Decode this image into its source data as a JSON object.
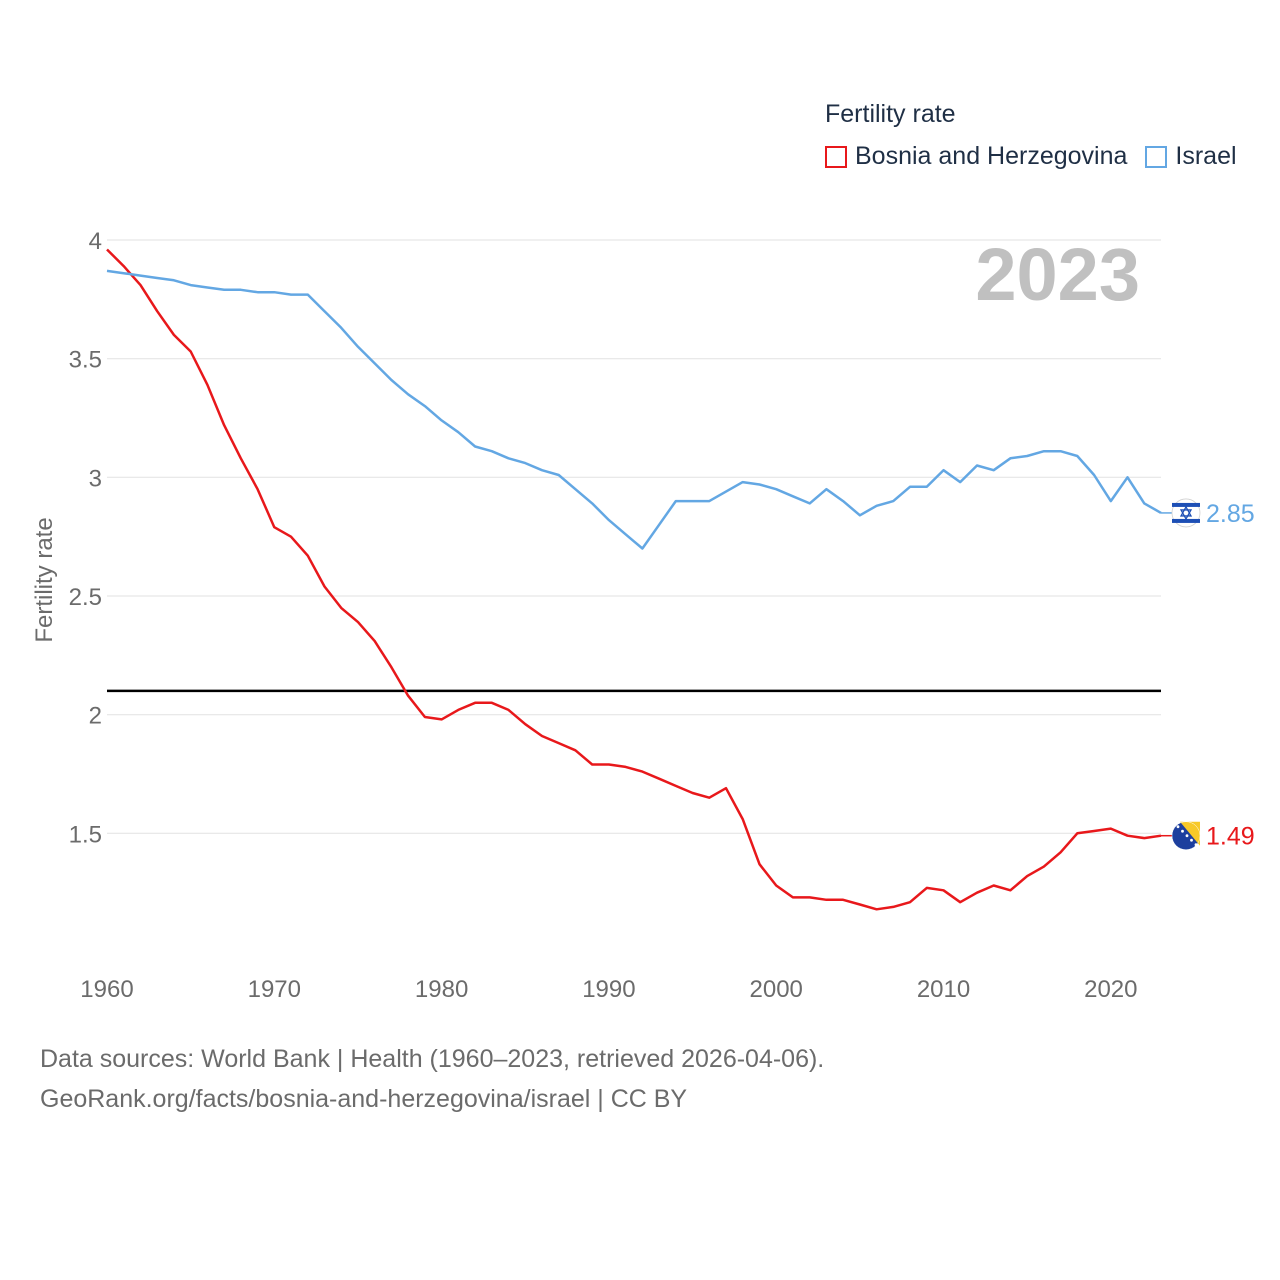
{
  "chart_data": {
    "type": "line",
    "legend_title": "Fertility rate",
    "ylabel": "Fertility rate",
    "xlabel": "",
    "year_label": "2023",
    "xlim": [
      1960,
      2023
    ],
    "ylim": [
      1.0,
      4.0
    ],
    "y_ticks": [
      1.5,
      2,
      2.5,
      3,
      3.5,
      4
    ],
    "x_ticks": [
      1960,
      1970,
      1980,
      1990,
      2000,
      2010,
      2020
    ],
    "grid": true,
    "legend_position": "top-right",
    "reference_line": 2.1,
    "x": [
      1960,
      1961,
      1962,
      1963,
      1964,
      1965,
      1966,
      1967,
      1968,
      1969,
      1970,
      1971,
      1972,
      1973,
      1974,
      1975,
      1976,
      1977,
      1978,
      1979,
      1980,
      1981,
      1982,
      1983,
      1984,
      1985,
      1986,
      1987,
      1988,
      1989,
      1990,
      1991,
      1992,
      1993,
      1994,
      1995,
      1996,
      1997,
      1998,
      1999,
      2000,
      2001,
      2002,
      2003,
      2004,
      2005,
      2006,
      2007,
      2008,
      2009,
      2010,
      2011,
      2012,
      2013,
      2014,
      2015,
      2016,
      2017,
      2018,
      2019,
      2020,
      2021,
      2022,
      2023
    ],
    "series": [
      {
        "name": "Bosnia and Herzegovina",
        "color": "#e8181b",
        "end_label": "1.49",
        "flag": "bosnia-flag",
        "values": [
          3.96,
          3.89,
          3.81,
          3.7,
          3.6,
          3.53,
          3.39,
          3.22,
          3.08,
          2.95,
          2.79,
          2.75,
          2.67,
          2.54,
          2.45,
          2.39,
          2.31,
          2.2,
          2.08,
          1.99,
          1.98,
          2.02,
          2.05,
          2.05,
          2.02,
          1.96,
          1.91,
          1.88,
          1.85,
          1.79,
          1.79,
          1.78,
          1.76,
          1.73,
          1.7,
          1.67,
          1.65,
          1.69,
          1.56,
          1.37,
          1.28,
          1.23,
          1.23,
          1.22,
          1.22,
          1.2,
          1.18,
          1.19,
          1.21,
          1.27,
          1.26,
          1.21,
          1.25,
          1.28,
          1.26,
          1.32,
          1.36,
          1.42,
          1.5,
          1.51,
          1.52,
          1.49,
          1.48,
          1.49
        ]
      },
      {
        "name": "Israel",
        "color": "#63a7e3",
        "end_label": "2.85",
        "flag": "israel-flag",
        "values": [
          3.87,
          3.86,
          3.85,
          3.84,
          3.83,
          3.81,
          3.8,
          3.79,
          3.79,
          3.78,
          3.78,
          3.77,
          3.77,
          3.7,
          3.63,
          3.55,
          3.48,
          3.41,
          3.35,
          3.3,
          3.24,
          3.19,
          3.13,
          3.11,
          3.08,
          3.06,
          3.03,
          3.01,
          2.95,
          2.89,
          2.82,
          2.76,
          2.7,
          2.8,
          2.9,
          2.9,
          2.9,
          2.94,
          2.98,
          2.97,
          2.95,
          2.92,
          2.89,
          2.95,
          2.9,
          2.84,
          2.88,
          2.9,
          2.96,
          2.96,
          3.03,
          2.98,
          3.05,
          3.03,
          3.08,
          3.09,
          3.11,
          3.11,
          3.09,
          3.01,
          2.9,
          3.0,
          2.89,
          2.85
        ]
      }
    ]
  },
  "footer": {
    "line1": "Data sources: World Bank | Health (1960–2023, retrieved 2026-04-06).",
    "line2": "GeoRank.org/facts/bosnia-and-herzegovina/israel | CC BY"
  }
}
